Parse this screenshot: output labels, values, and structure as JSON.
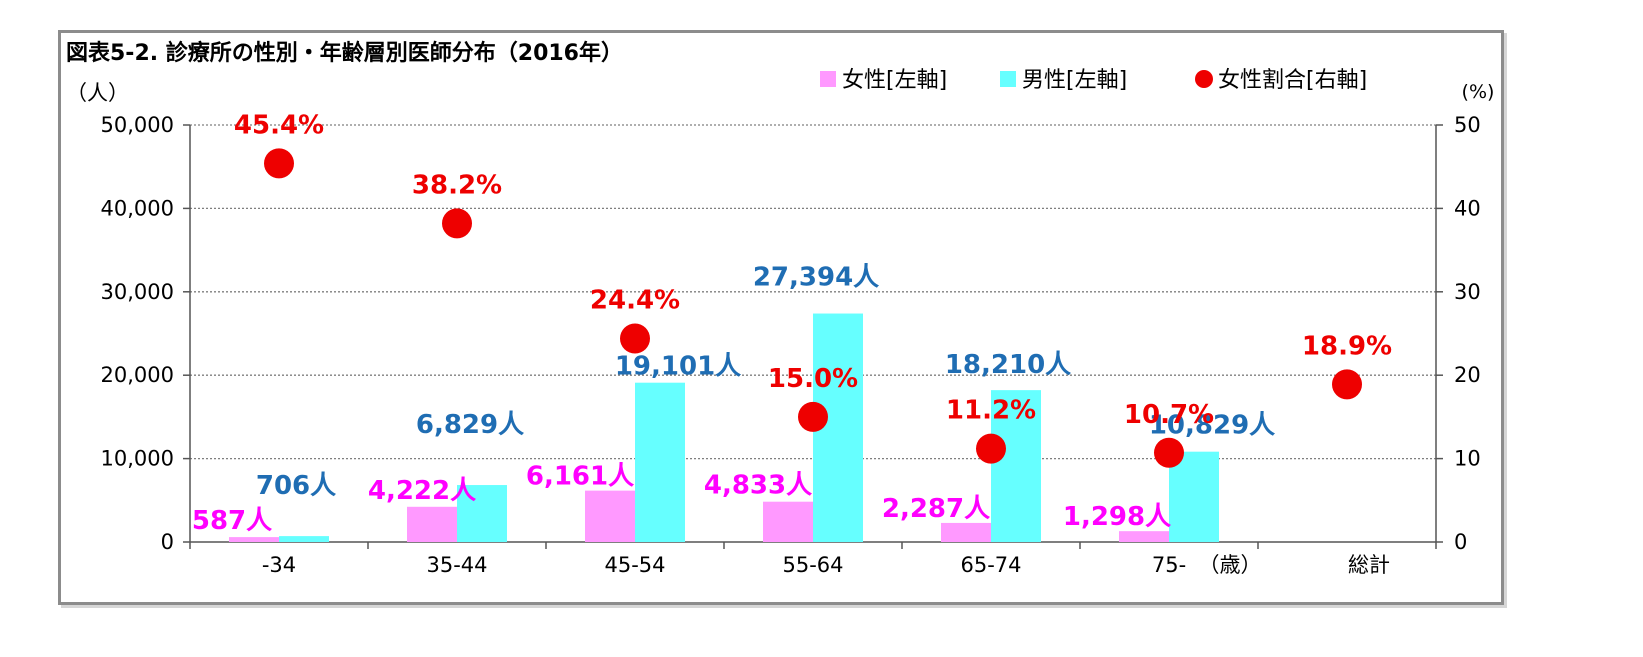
{
  "chart_data": {
    "type": "bar",
    "title": "図表5-2. 診療所の性別・年齢層別医師分布（2016年）",
    "y_left_unit": "（人）",
    "y_right_unit": "(%)",
    "x_suffix": "（歳）",
    "categories": [
      "-34",
      "35-44",
      "45-54",
      "55-64",
      "65-74",
      "75-",
      "総計"
    ],
    "y_left_ticks": [
      "0",
      "10,000",
      "20,000",
      "30,000",
      "40,000",
      "50,000"
    ],
    "y_right_ticks": [
      "0",
      "10",
      "20",
      "30",
      "40",
      "50"
    ],
    "ylim_left": [
      0,
      50000
    ],
    "ylim_right": [
      0,
      50
    ],
    "series": [
      {
        "name": "女性[左軸]",
        "kind": "bar",
        "axis": "left",
        "color": "#ff99ff",
        "label_color": "#ff00ff",
        "values": [
          587,
          4222,
          6161,
          4833,
          2287,
          1298,
          null
        ],
        "labels": [
          "587人",
          "4,222人",
          "6,161人",
          "4,833人",
          "2,287人",
          "1,298人",
          ""
        ]
      },
      {
        "name": "男性[左軸]",
        "kind": "bar",
        "axis": "left",
        "color": "#66ffff",
        "label_color": "#1f6db3",
        "values": [
          706,
          6829,
          19101,
          27394,
          18210,
          10829,
          null
        ],
        "labels": [
          "706人",
          "6,829人",
          "19,101人",
          "27,394人",
          "18,210人",
          "10,829人",
          ""
        ]
      },
      {
        "name": "女性割合[右軸]",
        "kind": "scatter",
        "axis": "right",
        "color": "#ee0000",
        "label_color": "#ee0000",
        "values": [
          45.4,
          38.2,
          24.4,
          15.0,
          11.2,
          10.7,
          18.9
        ],
        "labels": [
          "45.4%",
          "38.2%",
          "24.4%",
          "15.0%",
          "11.2%",
          "10.7%",
          "18.9%"
        ]
      }
    ],
    "grid": true,
    "legend_position": "top-right"
  }
}
